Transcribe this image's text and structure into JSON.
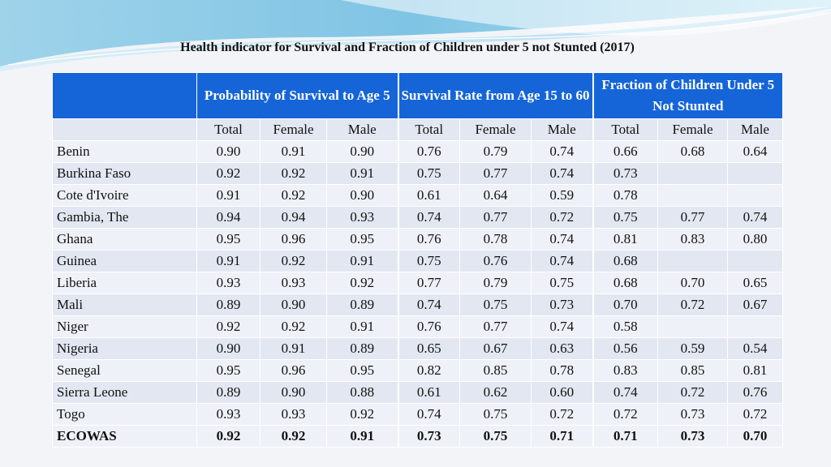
{
  "title": "Health indicator for Survival and Fraction of Children under 5 not Stunted (2017)",
  "colors": {
    "header_bg": "#1565d8",
    "row_dark": "#e2e7f2",
    "row_light": "#eef1f8"
  },
  "groups": [
    "Probability of Survival to Age 5",
    "Survival Rate from Age 15 to 60",
    "Fraction of Children Under 5 Not Stunted"
  ],
  "subheaders": [
    "Total",
    "Female",
    "Male",
    "Total",
    "Female",
    "Male",
    "Total",
    "Female",
    "Male"
  ],
  "rows": [
    {
      "name": "Benin",
      "values": [
        "0.90",
        "0.91",
        "0.90",
        "0.76",
        "0.79",
        "0.74",
        "0.66",
        "0.68",
        "0.64"
      ]
    },
    {
      "name": "Burkina Faso",
      "values": [
        "0.92",
        "0.92",
        "0.91",
        "0.75",
        "0.77",
        "0.74",
        "0.73",
        "",
        ""
      ]
    },
    {
      "name": "Cote d'Ivoire",
      "values": [
        "0.91",
        "0.92",
        "0.90",
        "0.61",
        "0.64",
        "0.59",
        "0.78",
        "",
        ""
      ]
    },
    {
      "name": "Gambia, The",
      "values": [
        "0.94",
        "0.94",
        "0.93",
        "0.74",
        "0.77",
        "0.72",
        "0.75",
        "0.77",
        "0.74"
      ]
    },
    {
      "name": "Ghana",
      "values": [
        "0.95",
        "0.96",
        "0.95",
        "0.76",
        "0.78",
        "0.74",
        "0.81",
        "0.83",
        "0.80"
      ]
    },
    {
      "name": "Guinea",
      "values": [
        "0.91",
        "0.92",
        "0.91",
        "0.75",
        "0.76",
        "0.74",
        "0.68",
        "",
        ""
      ]
    },
    {
      "name": "Liberia",
      "values": [
        "0.93",
        "0.93",
        "0.92",
        "0.77",
        "0.79",
        "0.75",
        "0.68",
        "0.70",
        "0.65"
      ]
    },
    {
      "name": "Mali",
      "values": [
        "0.89",
        "0.90",
        "0.89",
        "0.74",
        "0.75",
        "0.73",
        "0.70",
        "0.72",
        "0.67"
      ]
    },
    {
      "name": "Niger",
      "values": [
        "0.92",
        "0.92",
        "0.91",
        "0.76",
        "0.77",
        "0.74",
        "0.58",
        "",
        ""
      ]
    },
    {
      "name": "Nigeria",
      "values": [
        "0.90",
        "0.91",
        "0.89",
        "0.65",
        "0.67",
        "0.63",
        "0.56",
        "0.59",
        "0.54"
      ]
    },
    {
      "name": "Senegal",
      "values": [
        "0.95",
        "0.96",
        "0.95",
        "0.82",
        "0.85",
        "0.78",
        "0.83",
        "0.85",
        "0.81"
      ]
    },
    {
      "name": "Sierra Leone",
      "values": [
        "0.89",
        "0.90",
        "0.88",
        "0.61",
        "0.62",
        "0.60",
        "0.74",
        "0.72",
        "0.76"
      ]
    },
    {
      "name": "Togo",
      "values": [
        "0.93",
        "0.93",
        "0.92",
        "0.74",
        "0.75",
        "0.72",
        "0.72",
        "0.73",
        "0.72"
      ]
    }
  ],
  "total_row": {
    "name": "ECOWAS",
    "values": [
      "0.92",
      "0.92",
      "0.91",
      "0.73",
      "0.75",
      "0.71",
      "0.71",
      "0.73",
      "0.70"
    ]
  }
}
